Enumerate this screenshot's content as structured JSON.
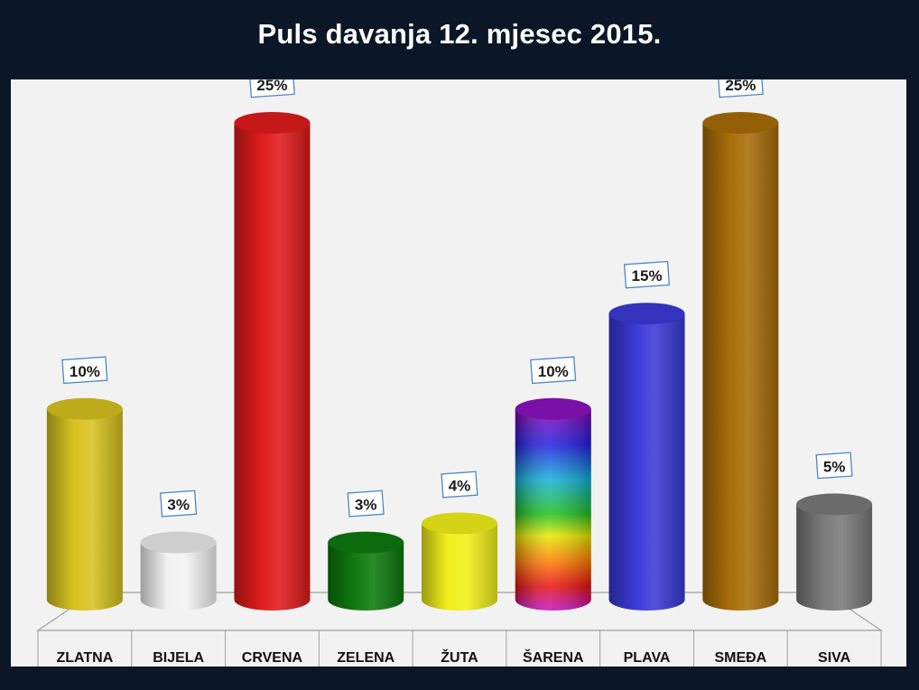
{
  "title": "Puls davanja 12. mjesec 2015.",
  "chart_data": {
    "type": "bar",
    "title": "Puls davanja 12. mjesec 2015.",
    "categories": [
      "ZLATNA",
      "BIJELA",
      "CRVENA",
      "ZELENA",
      "ŽUTA",
      "ŠARENA",
      "PLAVA",
      "SMEĐA",
      "SIVA"
    ],
    "values": [
      10,
      3,
      25,
      3,
      4,
      10,
      15,
      25,
      5
    ],
    "data_labels": [
      "10%",
      "3%",
      "25%",
      "3%",
      "4%",
      "10%",
      "15%",
      "25%",
      "5%"
    ],
    "unit": "%",
    "ylim": [
      0,
      25
    ],
    "grid": false,
    "legend": "none",
    "colors": [
      "#d8c21f",
      "#f2f2f2",
      "#e01b1b",
      "#0e7a0e",
      "#f2f01a",
      "rainbow",
      "#3a3ad8",
      "#a86d08",
      "#7a7a7a"
    ]
  }
}
